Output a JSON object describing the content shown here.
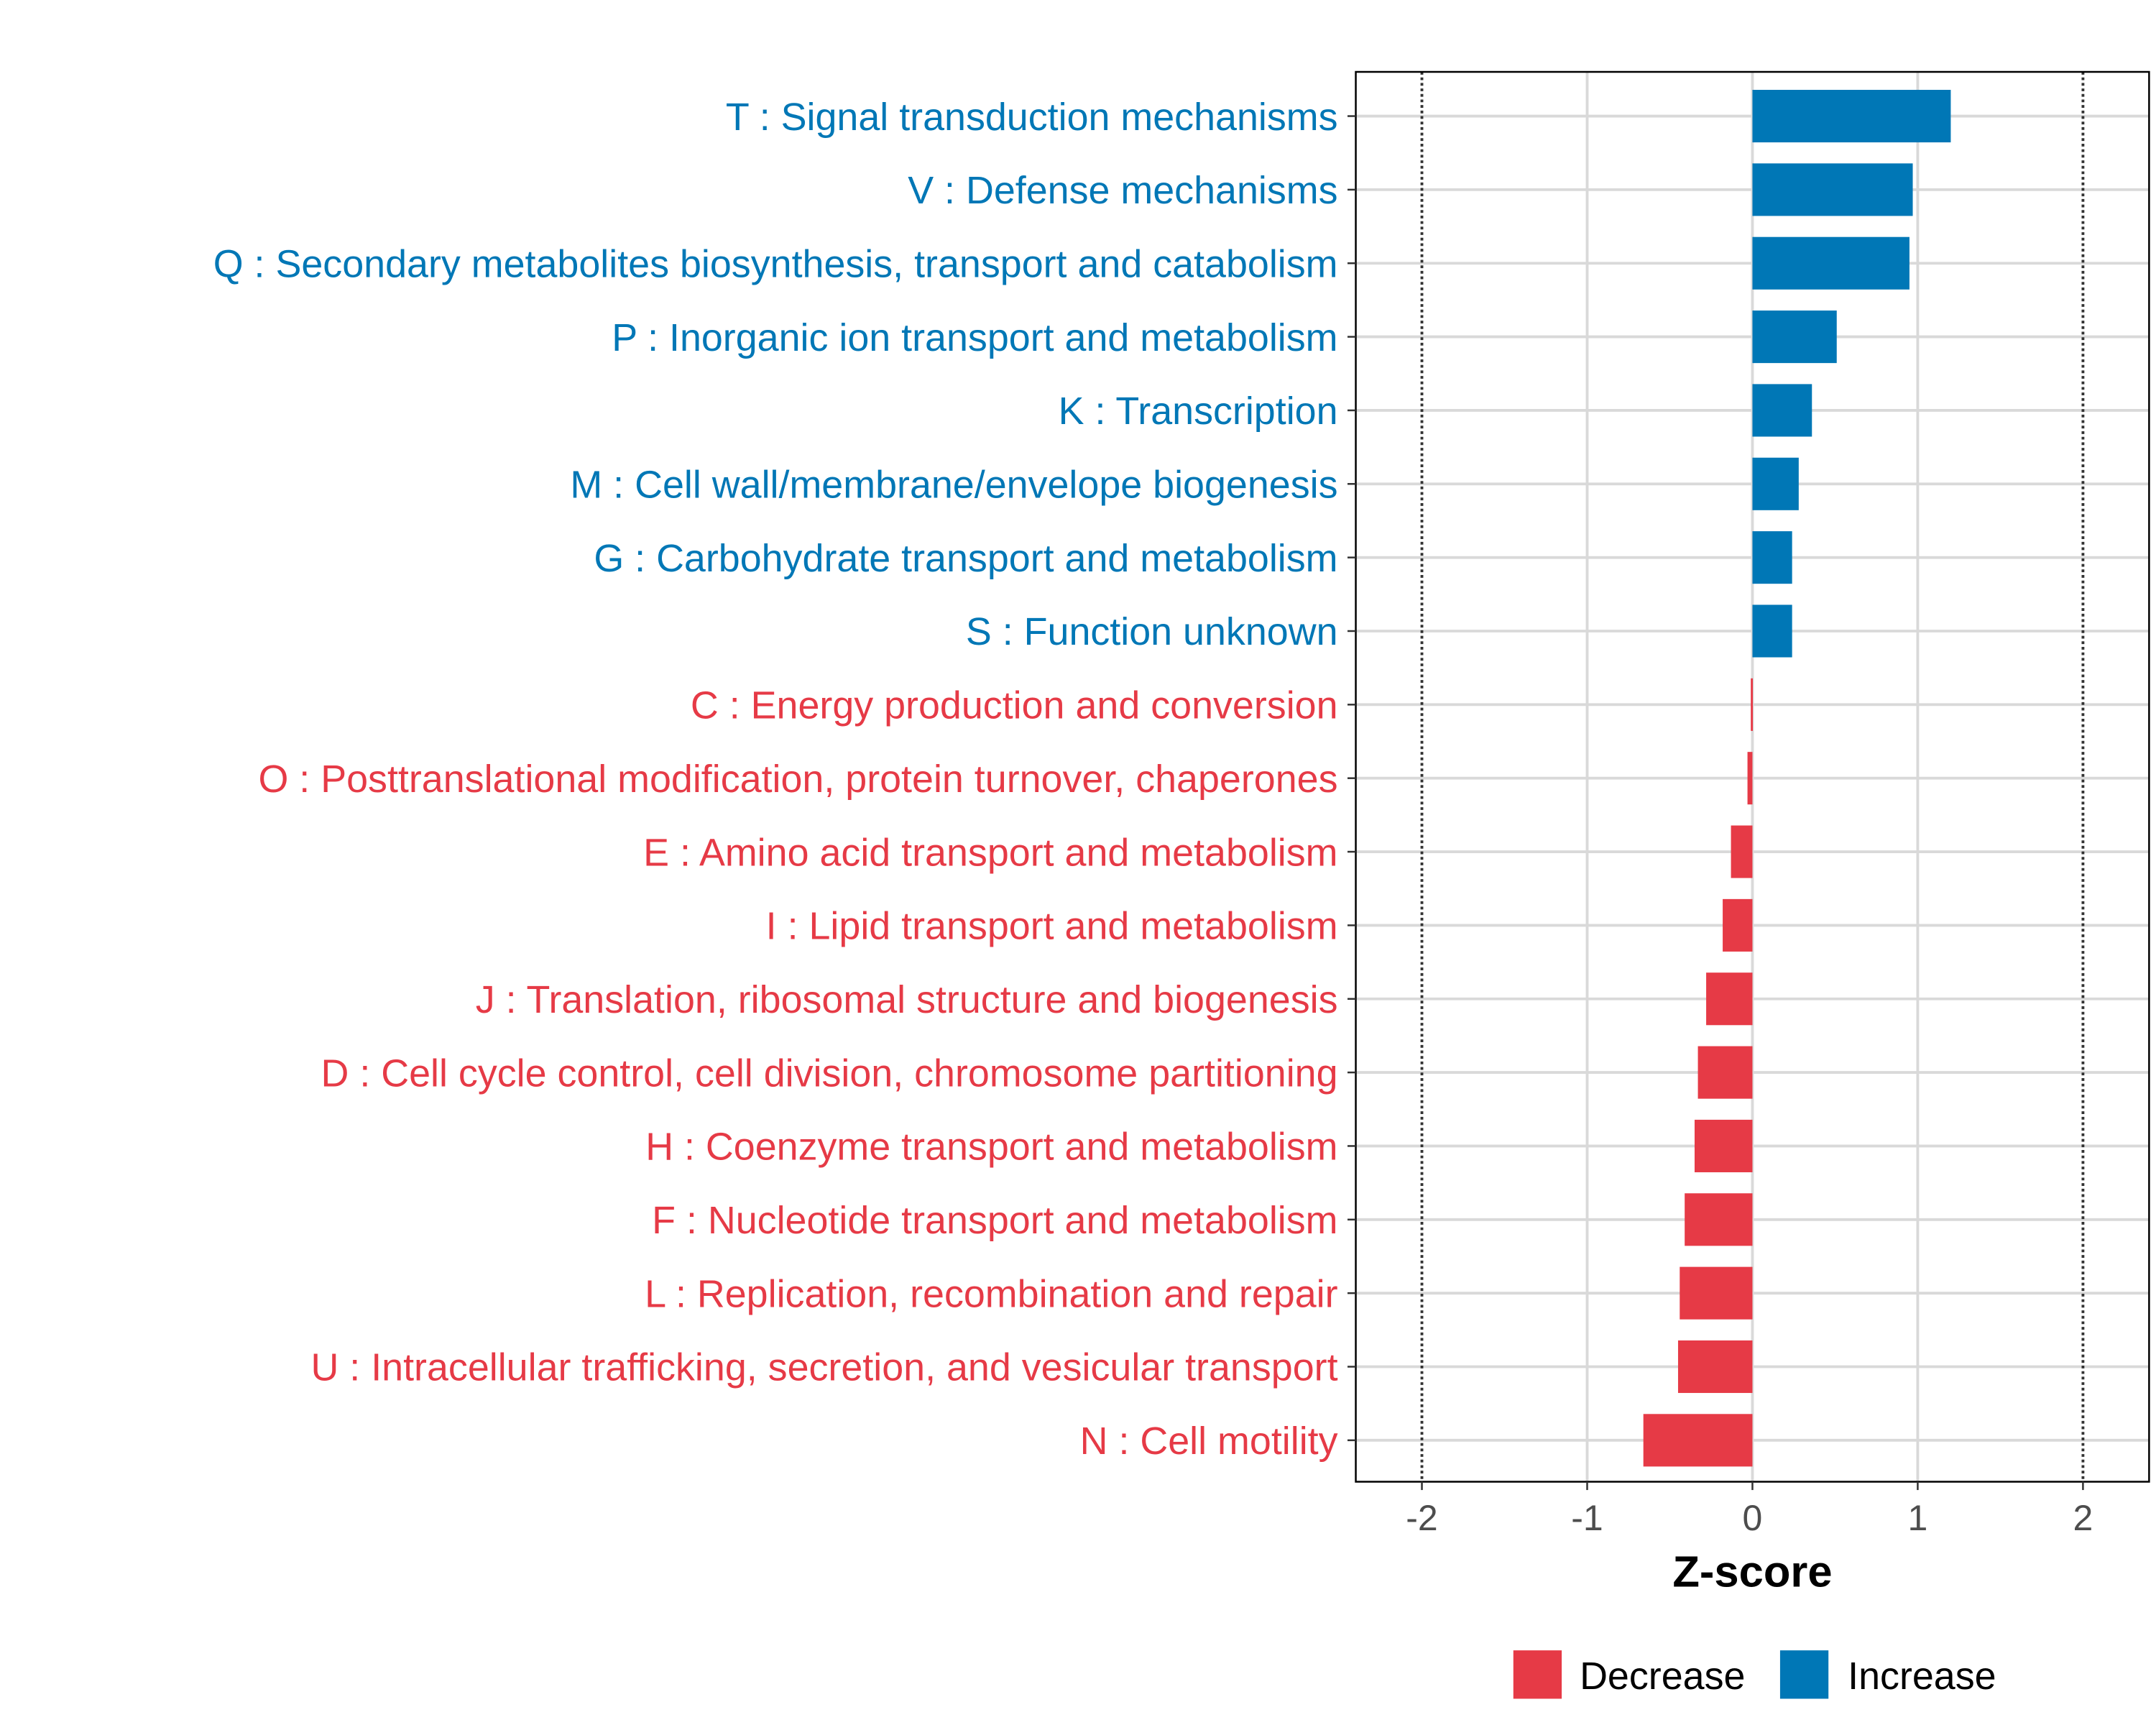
{
  "chart_data": {
    "type": "bar",
    "orientation": "horizontal",
    "title": "",
    "xlabel": "Z-score",
    "ylabel": "",
    "xlim": [
      -2.4,
      2.4
    ],
    "xticks": [
      -2,
      -1,
      0,
      1,
      2
    ],
    "xtick_labels": [
      "-2",
      "-1",
      "0",
      "1",
      "2"
    ],
    "reference_lines": [
      -2,
      2
    ],
    "grid": true,
    "categories": [
      "T : Signal transduction mechanisms",
      "V : Defense mechanisms",
      "Q : Secondary metabolites biosynthesis, transport and catabolism",
      "P : Inorganic ion transport and metabolism",
      "K : Transcription",
      "M : Cell wall/membrane/envelope biogenesis",
      "G : Carbohydrate transport and metabolism",
      "S : Function unknown",
      "C : Energy production and conversion",
      "O : Posttranslational modification, protein turnover, chaperones",
      "E : Amino acid transport and metabolism",
      "I : Lipid transport and metabolism",
      "J : Translation, ribosomal structure and biogenesis",
      "D : Cell cycle control, cell division, chromosome partitioning",
      "H : Coenzyme transport and metabolism",
      "F : Nucleotide transport and metabolism",
      "L : Replication, recombination and repair",
      "U : Intracellular trafficking, secretion, and vesicular transport",
      "N : Cell motility"
    ],
    "values": [
      1.2,
      0.97,
      0.95,
      0.51,
      0.36,
      0.28,
      0.24,
      0.24,
      -0.01,
      -0.03,
      -0.13,
      -0.18,
      -0.28,
      -0.33,
      -0.35,
      -0.41,
      -0.44,
      -0.45,
      -0.66
    ],
    "legend": {
      "placement": "bottom",
      "entries": [
        {
          "label": "Decrease",
          "color": "#E63A46"
        },
        {
          "label": "Increase",
          "color": "#0077B6"
        }
      ]
    },
    "colors": {
      "decrease": "#E63A46",
      "increase": "#0077B6"
    }
  }
}
